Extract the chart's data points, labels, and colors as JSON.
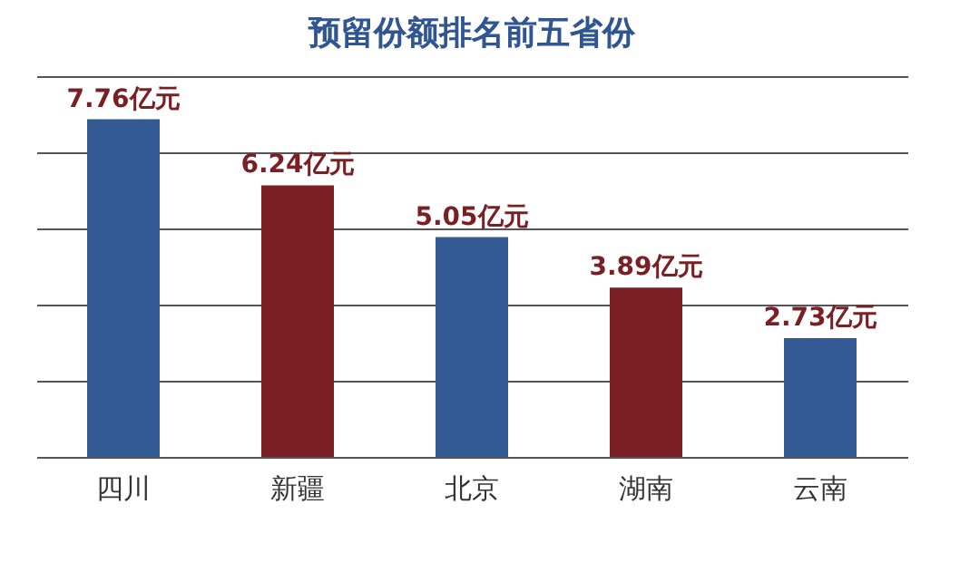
{
  "chart_data": {
    "type": "bar",
    "title": "预留份额排名前五省份",
    "categories": [
      "四川",
      "新疆",
      "北京",
      "湖南",
      "云南"
    ],
    "values": [
      7.76,
      6.24,
      5.05,
      3.89,
      2.73
    ],
    "colors": [
      "#345a94",
      "#7a1f24",
      "#345a94",
      "#7a1f24",
      "#345a94"
    ],
    "value_labels": [
      "7.76亿元",
      "6.24亿元",
      "5.05亿元",
      "3.89亿元",
      "2.73亿元"
    ],
    "ylim": [
      0,
      8.75
    ],
    "yticks": [
      {
        "value": 0,
        "label": null
      },
      {
        "value": 1.75,
        "label": null
      },
      {
        "value": 3.5,
        "label": null
      },
      {
        "value": 5.25,
        "label": null
      },
      {
        "value": 7,
        "label": null
      },
      {
        "value": 8.75,
        "label": null
      }
    ],
    "grid": "y",
    "tick_labels": "x"
  }
}
